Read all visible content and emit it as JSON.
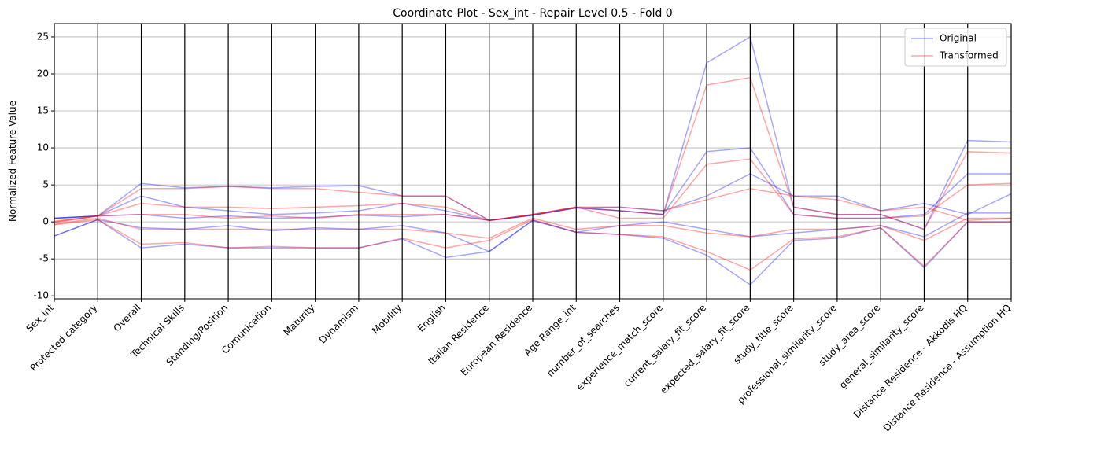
{
  "chart_data": {
    "type": "parallel",
    "title": "Coordinate Plot - Sex_int - Repair Level 0.5 - Fold 0",
    "ylabel": "Normalized Feature Value",
    "categories": [
      "Sex_int",
      "Protected category",
      "Overall",
      "Technical Skills",
      "Standing/Position",
      "Comunication",
      "Maturity",
      "Dynamism",
      "Mobility",
      "English",
      "Italian Residence",
      "European Residence",
      "Age Range_int",
      "number_of_searches",
      "experience_match_score",
      "current_salary_fit_score",
      "expected_salary_fit_score",
      "study_title_score",
      "professional_similarity_score",
      "study_area_score",
      "general_similarity_score",
      "Distance Residence - Akkodis HQ",
      "Distance Residence - Assumption HQ"
    ],
    "ylim": [
      -10.4,
      26.8
    ],
    "yticks": [
      -10,
      -5,
      0,
      5,
      10,
      15,
      20,
      25
    ],
    "grid": true,
    "legend": "upper right",
    "series": [
      {
        "name": "Original",
        "color": "#0000ff",
        "lines": [
          [
            0.5,
            0.8,
            3.5,
            2.0,
            1.5,
            1.0,
            1.2,
            1.5,
            2.5,
            1.5,
            0.2,
            0.9,
            1.9,
            1.5,
            1.0,
            21.5,
            25.0,
            2.0,
            1.0,
            1.0,
            -1.0,
            11.0,
            10.8
          ],
          [
            -1.9,
            0.3,
            -3.5,
            -3.0,
            -3.5,
            -3.5,
            -3.5,
            -3.5,
            -2.3,
            -4.8,
            -4.0,
            0.2,
            -1.4,
            -1.7,
            -2.2,
            -4.5,
            -8.5,
            -2.5,
            -2.2,
            -0.8,
            -6.2,
            0.0,
            0.0
          ],
          [
            0.5,
            0.8,
            1.0,
            0.5,
            0.8,
            0.5,
            0.6,
            0.9,
            0.7,
            1.0,
            0.2,
            0.9,
            1.9,
            1.5,
            1.0,
            9.5,
            10.0,
            1.0,
            0.5,
            0.5,
            1.0,
            6.5,
            6.5
          ],
          [
            -1.9,
            0.3,
            -0.8,
            -1.0,
            -0.5,
            -1.2,
            -0.8,
            -1.0,
            -0.5,
            -1.5,
            -4.0,
            0.2,
            -1.4,
            -0.5,
            0.0,
            -1.0,
            -2.0,
            -1.5,
            -1.0,
            -0.5,
            -2.0,
            1.2,
            1.2
          ],
          [
            0.5,
            0.8,
            5.2,
            4.6,
            4.8,
            4.6,
            4.8,
            4.9,
            3.5,
            3.5,
            0.2,
            0.9,
            1.9,
            2.0,
            1.5,
            3.5,
            6.5,
            3.5,
            3.5,
            1.5,
            2.5,
            1.0,
            3.8
          ]
        ]
      },
      {
        "name": "Transformed",
        "color": "#ff0000",
        "lines": [
          [
            -0.1,
            0.8,
            2.5,
            2.0,
            2.0,
            1.8,
            2.0,
            2.2,
            2.5,
            2.0,
            0.2,
            1.0,
            2.0,
            1.5,
            1.0,
            18.5,
            19.5,
            2.0,
            1.0,
            1.0,
            -1.0,
            9.5,
            9.3
          ],
          [
            -0.4,
            0.3,
            -3.0,
            -2.8,
            -3.5,
            -3.3,
            -3.5,
            -3.5,
            -2.2,
            -3.5,
            -2.5,
            0.3,
            -1.4,
            -1.7,
            -2.0,
            -4.0,
            -6.5,
            -2.3,
            -2.0,
            -0.8,
            -6.0,
            0.0,
            0.0
          ],
          [
            0.1,
            0.8,
            1.0,
            1.0,
            0.5,
            0.8,
            0.5,
            1.0,
            1.0,
            1.0,
            0.2,
            1.0,
            2.0,
            0.5,
            0.5,
            7.8,
            8.5,
            1.0,
            0.5,
            0.5,
            0.8,
            5.0,
            5.2
          ],
          [
            -0.3,
            0.5,
            -1.0,
            -1.0,
            -1.0,
            -1.0,
            -1.0,
            -1.0,
            -1.0,
            -1.5,
            -2.2,
            0.5,
            -1.0,
            -0.5,
            -0.5,
            -1.5,
            -2.0,
            -1.0,
            -1.0,
            -0.5,
            -2.5,
            0.5,
            0.5
          ],
          [
            0.0,
            0.8,
            4.5,
            4.5,
            4.8,
            4.5,
            4.5,
            4.0,
            3.5,
            3.5,
            0.2,
            1.0,
            2.0,
            2.0,
            1.5,
            3.0,
            4.5,
            3.5,
            3.0,
            1.5,
            2.0,
            0.2,
            0.5
          ]
        ]
      }
    ]
  }
}
